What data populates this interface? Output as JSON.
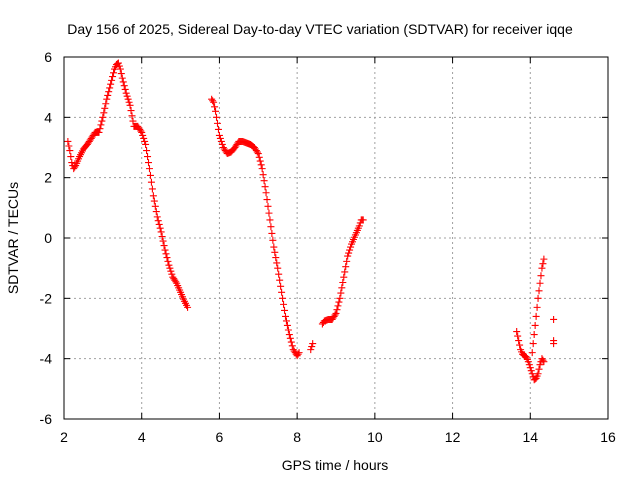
{
  "chart_data": {
    "type": "scatter",
    "title": "Day 156 of 2025, Sidereal Day-to-day VTEC variation (SDTVAR) for receiver iqqe",
    "xlabel": "GPS time / hours",
    "ylabel": "SDTVAR / TECUs",
    "xlim": [
      2,
      16
    ],
    "ylim": [
      -6,
      6
    ],
    "xticks": [
      2,
      4,
      6,
      8,
      10,
      12,
      14,
      16
    ],
    "yticks": [
      -6,
      -4,
      -2,
      0,
      2,
      4,
      6
    ],
    "xtick_labels": [
      "2",
      "4",
      "6",
      "8",
      "10",
      "12",
      "14",
      "16"
    ],
    "ytick_labels": [
      "-6",
      "-4",
      "-2",
      "0",
      "2",
      "4",
      "6"
    ],
    "grid": true,
    "marker": "+",
    "color": "#ff0000",
    "series": [
      {
        "name": "segment-1",
        "x": [
          2.1,
          2.15,
          2.2,
          2.25,
          2.3,
          2.4,
          2.5,
          2.6,
          2.7,
          2.8,
          2.9,
          3.0,
          3.1,
          3.2,
          3.3,
          3.35,
          3.4,
          3.45,
          3.5,
          3.6,
          3.7,
          3.8,
          3.9,
          4.0,
          4.1,
          4.2,
          4.3,
          4.4,
          4.5,
          4.6,
          4.7,
          4.8,
          4.9,
          5.0,
          5.1,
          5.18
        ],
        "y": [
          3.2,
          2.9,
          2.5,
          2.3,
          2.4,
          2.7,
          2.95,
          3.1,
          3.3,
          3.5,
          3.5,
          4.0,
          4.6,
          5.1,
          5.6,
          5.75,
          5.8,
          5.6,
          5.3,
          4.8,
          4.4,
          3.7,
          3.7,
          3.5,
          3.1,
          2.3,
          1.4,
          0.7,
          0.2,
          -0.4,
          -0.9,
          -1.3,
          -1.5,
          -1.8,
          -2.1,
          -2.3
        ]
      },
      {
        "name": "segment-2",
        "x": [
          5.8,
          5.85,
          5.9,
          5.95,
          6.0,
          6.1,
          6.2,
          6.3,
          6.4,
          6.5,
          6.6,
          6.7,
          6.8,
          6.9,
          7.0,
          7.1,
          7.2,
          7.3,
          7.4,
          7.5,
          7.6,
          7.7,
          7.8,
          7.9,
          8.0,
          8.05
        ],
        "y": [
          4.6,
          4.5,
          4.2,
          3.8,
          3.4,
          3.0,
          2.8,
          2.85,
          3.0,
          3.2,
          3.2,
          3.15,
          3.1,
          3.0,
          2.8,
          2.3,
          1.5,
          0.6,
          -0.3,
          -1.0,
          -1.8,
          -2.6,
          -3.2,
          -3.7,
          -3.9,
          -3.8
        ]
      },
      {
        "name": "segment-3",
        "x": [
          8.35,
          8.4
        ],
        "y": [
          -3.7,
          -3.5
        ]
      },
      {
        "name": "segment-4",
        "x": [
          8.65,
          8.7,
          8.8,
          8.9,
          9.0,
          9.1,
          9.2,
          9.3,
          9.4,
          9.5,
          9.6,
          9.65,
          9.7
        ],
        "y": [
          -2.85,
          -2.75,
          -2.7,
          -2.7,
          -2.5,
          -2.0,
          -1.3,
          -0.6,
          -0.2,
          0.1,
          0.4,
          0.6,
          0.6
        ]
      },
      {
        "name": "segment-5",
        "x": [
          13.65,
          13.7,
          13.75,
          13.8,
          13.85,
          13.9,
          13.95,
          14.0,
          14.05,
          14.1,
          14.15,
          14.2,
          14.25,
          14.3,
          14.35
        ],
        "y": [
          -3.1,
          -3.4,
          -3.7,
          -3.85,
          -3.9,
          -3.95,
          -4.1,
          -4.3,
          -4.5,
          -4.7,
          -4.65,
          -4.5,
          -4.2,
          -4.0,
          -4.1
        ]
      },
      {
        "name": "segment-6",
        "x": [
          14.05,
          14.1,
          14.15,
          14.2,
          14.25,
          14.3,
          14.35
        ],
        "y": [
          -3.8,
          -3.2,
          -2.6,
          -2.0,
          -1.5,
          -1.0,
          -0.7
        ]
      },
      {
        "name": "segment-7",
        "x": [
          14.6,
          14.6,
          14.6
        ],
        "y": [
          -2.7,
          -3.4,
          -3.5
        ]
      }
    ]
  }
}
